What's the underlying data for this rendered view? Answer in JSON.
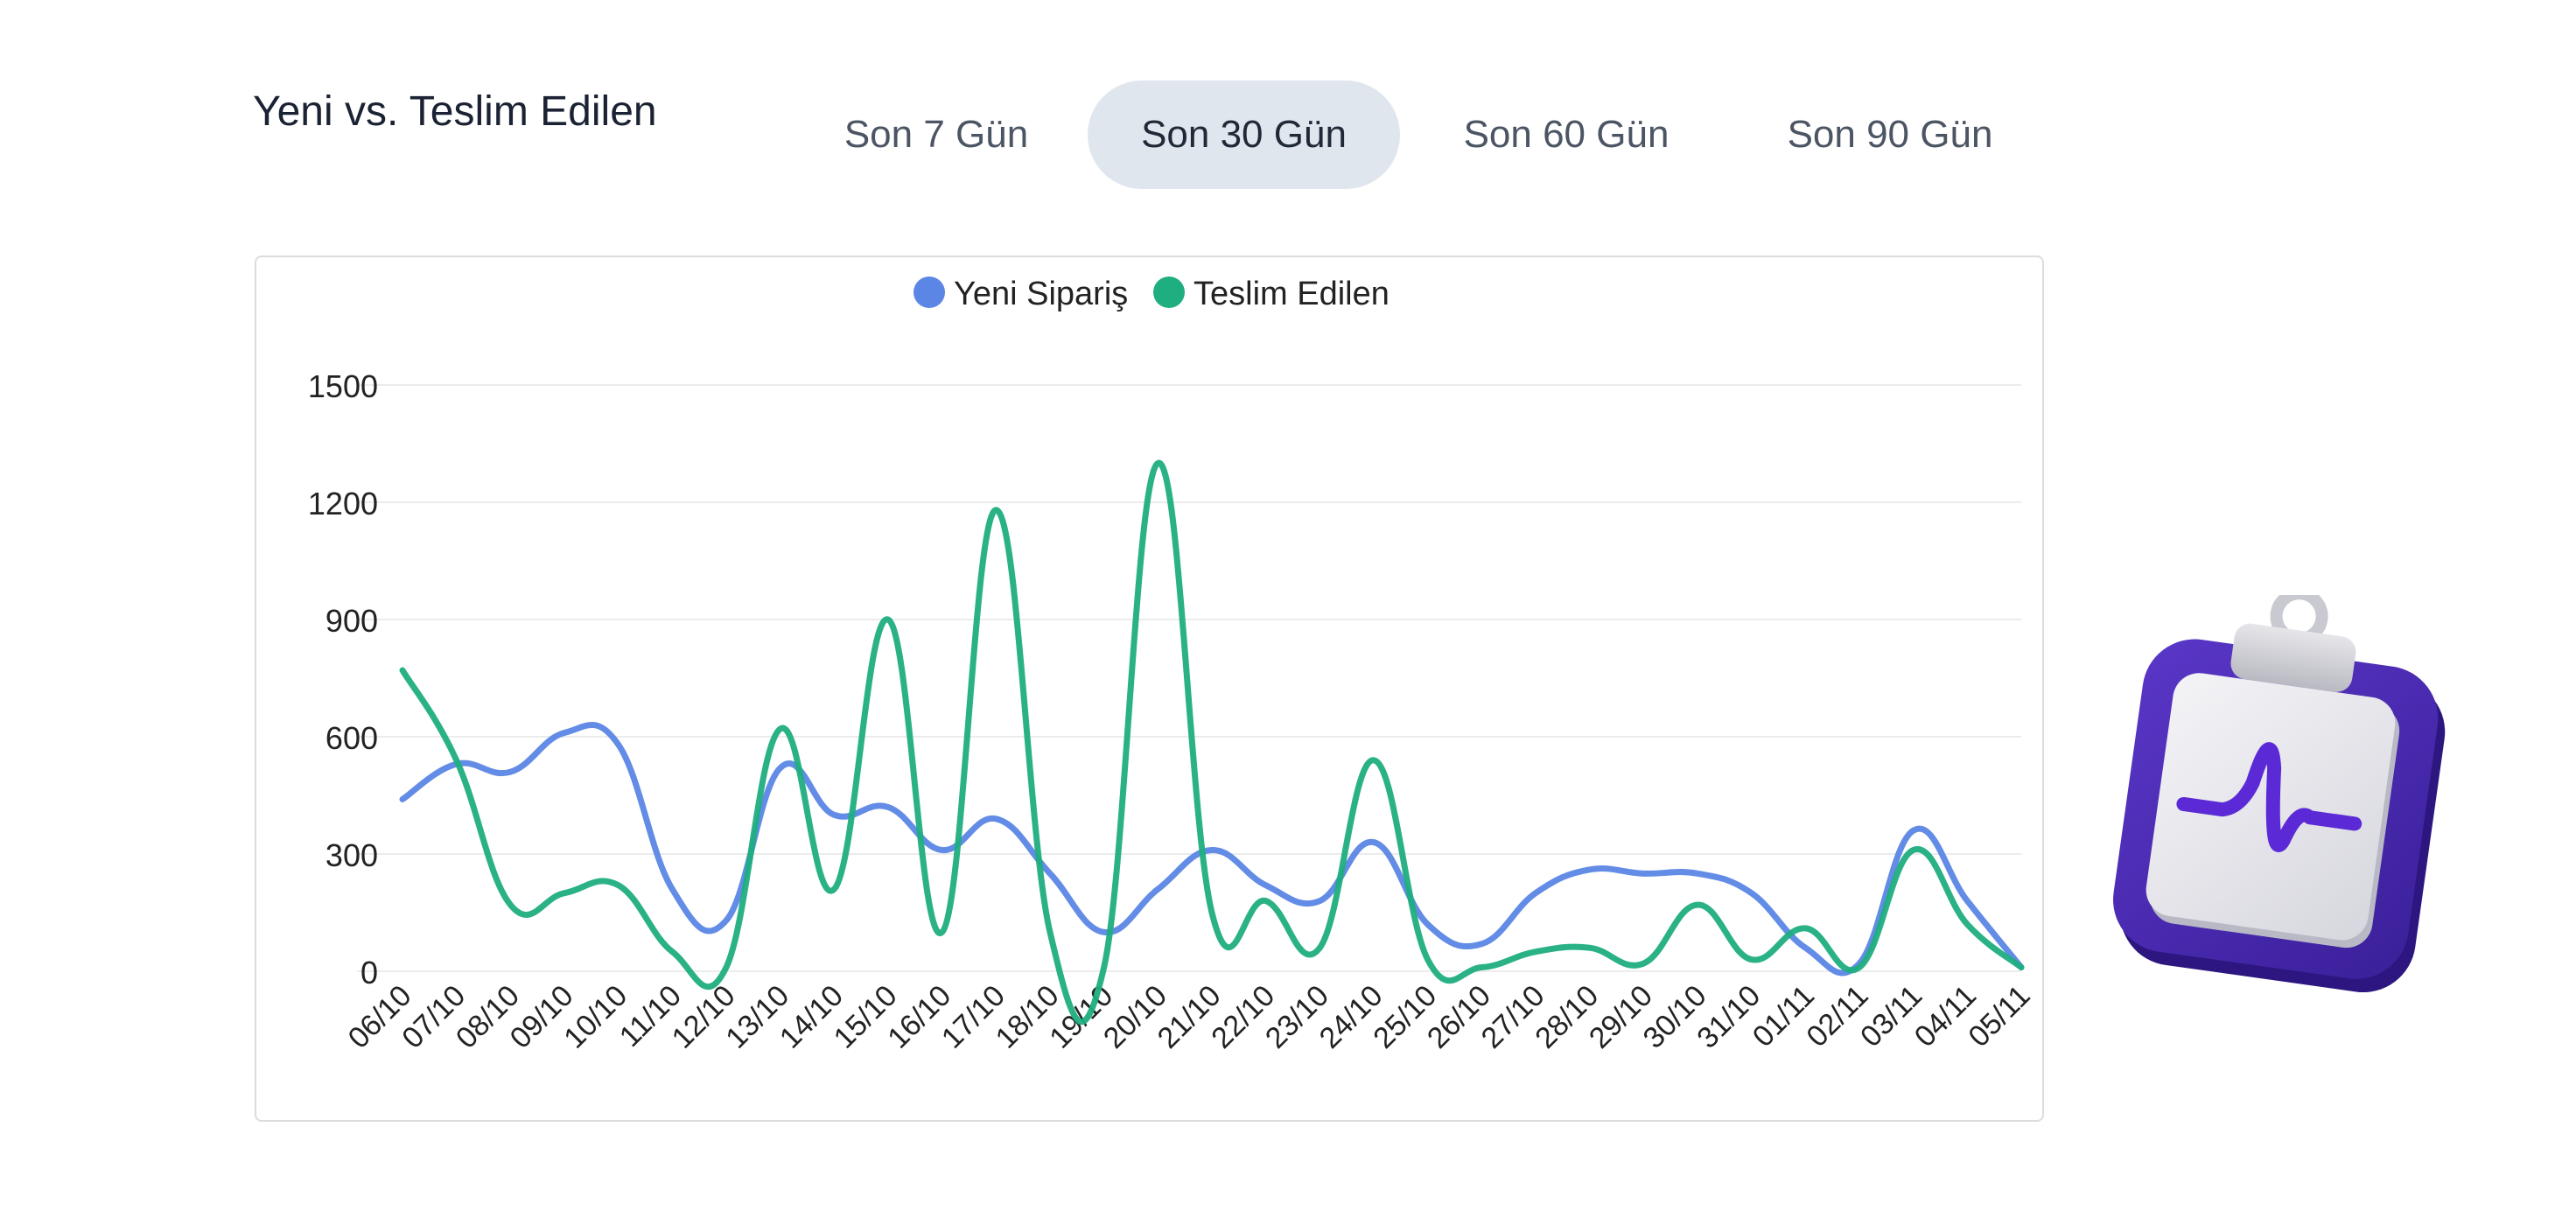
{
  "header": {
    "title": "Yeni vs. Teslim Edilen",
    "tabs": [
      {
        "label": "Son 7 Gün",
        "active": false
      },
      {
        "label": "Son 30 Gün",
        "active": true
      },
      {
        "label": "Son 60 Gün",
        "active": false
      },
      {
        "label": "Son 90 Gün",
        "active": false
      }
    ]
  },
  "decoration": {
    "icon": "clipboard-pulse-icon"
  },
  "colors": {
    "new": "#5b86e5",
    "delivered": "#1fae7f",
    "active_tab": "#dfe6ee"
  },
  "chart_data": {
    "type": "line",
    "legend_position": "top-center",
    "grid": true,
    "ylim": [
      0,
      1500
    ],
    "yticks": [
      0,
      300,
      600,
      900,
      1200,
      1500
    ],
    "categories": [
      "06/10",
      "07/10",
      "08/10",
      "09/10",
      "10/10",
      "11/10",
      "12/10",
      "13/10",
      "14/10",
      "15/10",
      "16/10",
      "17/10",
      "18/10",
      "19/10",
      "20/10",
      "21/10",
      "22/10",
      "23/10",
      "24/10",
      "25/10",
      "26/10",
      "27/10",
      "28/10",
      "29/10",
      "30/10",
      "31/10",
      "01/11",
      "02/11",
      "03/11",
      "04/11",
      "05/11"
    ],
    "series": [
      {
        "name": "Yeni Sipariş",
        "color": "#5b86e5",
        "values": [
          440,
          530,
          510,
          610,
          580,
          210,
          130,
          520,
          400,
          420,
          310,
          390,
          250,
          100,
          210,
          310,
          220,
          180,
          330,
          120,
          70,
          200,
          260,
          250,
          250,
          200,
          60,
          20,
          360,
          180,
          10
        ]
      },
      {
        "name": "Teslim Edilen",
        "color": "#1fae7f",
        "values": [
          770,
          540,
          170,
          200,
          220,
          50,
          10,
          620,
          210,
          900,
          100,
          1180,
          100,
          10,
          1300,
          150,
          180,
          60,
          540,
          30,
          10,
          50,
          60,
          20,
          170,
          30,
          110,
          10,
          310,
          120,
          10
        ]
      }
    ]
  }
}
